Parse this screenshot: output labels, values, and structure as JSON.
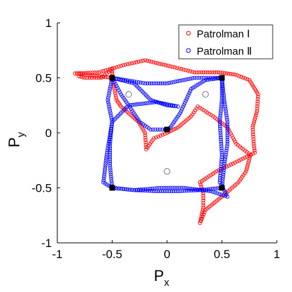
{
  "chart_data": {
    "type": "scatter",
    "xlabel": "P",
    "xlabel_sub": "x",
    "ylabel": "P",
    "ylabel_sub": "y",
    "xlim": [
      -1,
      1
    ],
    "ylim": [
      -1,
      1
    ],
    "xticks": [
      -1,
      -0.5,
      0,
      0.5,
      1
    ],
    "yticks": [
      -1,
      -0.5,
      0,
      0.5,
      1
    ],
    "xtick_labels": [
      "-1",
      "-0.5",
      "0",
      "0.5",
      "1"
    ],
    "ytick_labels": [
      "-1",
      "-0.5",
      "0",
      "0.5",
      "1"
    ],
    "grid": false,
    "legend_position": "top-right",
    "series": [
      {
        "name": "Patrolman Ⅰ",
        "color": "#ff0000",
        "marker": "open-circle",
        "waypoints": [
          [
            -0.5,
            0.5
          ],
          [
            -0.84,
            0.54
          ],
          [
            -0.62,
            0.55
          ],
          [
            -0.38,
            0.62
          ],
          [
            -0.2,
            0.66
          ],
          [
            0.05,
            0.6
          ],
          [
            0.25,
            0.55
          ],
          [
            0.47,
            0.55
          ],
          [
            0.62,
            0.53
          ],
          [
            0.75,
            0.48
          ],
          [
            0.83,
            0.35
          ],
          [
            0.82,
            0.2
          ],
          [
            0.78,
            0.05
          ],
          [
            0.79,
            -0.1
          ],
          [
            0.8,
            -0.18
          ],
          [
            0.6,
            -0.28
          ],
          [
            0.45,
            -0.35
          ],
          [
            0.3,
            -0.45
          ],
          [
            0.33,
            -0.55
          ],
          [
            0.33,
            -0.68
          ],
          [
            0.3,
            -0.82
          ],
          [
            0.35,
            -0.7
          ],
          [
            0.5,
            -0.58
          ],
          [
            0.65,
            -0.45
          ],
          [
            0.72,
            -0.35
          ],
          [
            0.76,
            -0.2
          ],
          [
            0.63,
            -0.1
          ],
          [
            0.55,
            0.05
          ],
          [
            0.42,
            0.15
          ],
          [
            0.28,
            0.24
          ],
          [
            0.22,
            0.15
          ],
          [
            0.1,
            0.05
          ],
          [
            0.0,
            0.0
          ],
          [
            -0.12,
            -0.05
          ],
          [
            -0.19,
            -0.15
          ],
          [
            -0.2,
            0.0
          ],
          [
            -0.26,
            0.1
          ],
          [
            -0.42,
            0.24
          ],
          [
            -0.46,
            0.3
          ],
          [
            -0.48,
            0.4
          ],
          [
            -0.5,
            0.5
          ],
          [
            -0.5,
            0.58
          ],
          [
            -0.6,
            0.5
          ],
          [
            -0.75,
            0.5
          ],
          [
            -0.82,
            0.52
          ]
        ]
      },
      {
        "name": "Patrolman Ⅱ",
        "color": "#0000ff",
        "marker": "open-circle",
        "waypoints": [
          [
            -0.5,
            0.5
          ],
          [
            -0.54,
            0.3
          ],
          [
            -0.5,
            0.1
          ],
          [
            -0.52,
            -0.1
          ],
          [
            -0.52,
            -0.3
          ],
          [
            -0.5,
            -0.5
          ],
          [
            -0.3,
            -0.52
          ],
          [
            -0.1,
            -0.53
          ],
          [
            0.1,
            -0.53
          ],
          [
            0.3,
            -0.52
          ],
          [
            0.5,
            -0.5
          ],
          [
            0.52,
            -0.3
          ],
          [
            0.55,
            -0.1
          ],
          [
            0.55,
            0.1
          ],
          [
            0.52,
            0.3
          ],
          [
            0.5,
            0.5
          ],
          [
            0.35,
            0.48
          ],
          [
            0.22,
            0.4
          ],
          [
            0.12,
            0.18
          ],
          [
            0.03,
            0.05
          ],
          [
            0.0,
            0.03
          ],
          [
            -0.15,
            0.03
          ],
          [
            -0.25,
            0.1
          ],
          [
            -0.35,
            0.25
          ],
          [
            -0.42,
            0.35
          ],
          [
            -0.5,
            0.5
          ],
          [
            -0.3,
            0.45
          ],
          [
            -0.15,
            0.3
          ],
          [
            0.0,
            0.25
          ],
          [
            0.1,
            0.24
          ],
          [
            -0.1,
            0.28
          ],
          [
            -0.35,
            0.25
          ],
          [
            -0.5,
            0.1
          ],
          [
            -0.55,
            -0.2
          ],
          [
            -0.58,
            -0.45
          ],
          [
            -0.5,
            -0.5
          ],
          [
            -0.3,
            -0.52
          ],
          [
            -0.05,
            -0.5
          ],
          [
            0.15,
            -0.5
          ],
          [
            0.4,
            -0.53
          ],
          [
            0.55,
            -0.58
          ],
          [
            0.48,
            -0.45
          ],
          [
            0.5,
            -0.2
          ],
          [
            0.48,
            0.1
          ],
          [
            0.5,
            0.3
          ],
          [
            0.5,
            0.5
          ],
          [
            0.25,
            0.5
          ],
          [
            0.0,
            0.45
          ],
          [
            -0.2,
            0.45
          ],
          [
            -0.5,
            0.5
          ]
        ]
      }
    ],
    "nodes": {
      "color": "#000000",
      "marker": "filled-square",
      "points": [
        [
          -0.5,
          0.5
        ],
        [
          0.5,
          0.5
        ],
        [
          0.0,
          0.03
        ],
        [
          -0.5,
          -0.5
        ],
        [
          0.5,
          -0.5
        ]
      ]
    },
    "targets": {
      "color": "#777777",
      "marker": "open-circle",
      "points": [
        [
          -0.35,
          0.35
        ],
        [
          0.35,
          0.35
        ],
        [
          0.0,
          -0.35
        ]
      ]
    }
  }
}
